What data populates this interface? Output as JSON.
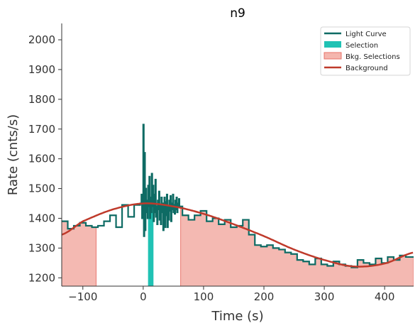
{
  "chart_data": {
    "type": "line",
    "title": "n9",
    "xlabel": "Time (s)",
    "ylabel": "Rate (cnts/s)",
    "xlim": [
      -135,
      448
    ],
    "ylim": [
      1172,
      2055
    ],
    "x_ticks": [
      -100,
      0,
      100,
      200,
      300,
      400
    ],
    "y_ticks": [
      1200,
      1300,
      1400,
      1500,
      1600,
      1700,
      1800,
      1900,
      2000
    ],
    "x_tick_labels": [
      "−100",
      "0",
      "100",
      "200",
      "300",
      "400"
    ],
    "y_tick_labels": [
      "1200",
      "1300",
      "1400",
      "1500",
      "1600",
      "1700",
      "1800",
      "1900",
      "2000"
    ],
    "legend": {
      "position": "top-right",
      "entries": [
        {
          "label": "Light Curve",
          "kind": "line",
          "color": "#0e6b64"
        },
        {
          "label": "Selection",
          "kind": "patch",
          "color": "#20c2b4"
        },
        {
          "label": "Bkg. Selections",
          "kind": "patch",
          "color": "#f4b6ae"
        },
        {
          "label": "Background",
          "kind": "line",
          "color": "#bf3a2b"
        }
      ]
    },
    "colors": {
      "light_curve": "#0e6b64",
      "selection": "#20c2b4",
      "bkg_selection_fill": "#f4b6ae",
      "bkg_selection_edge": "#e8736a",
      "background": "#bf3a2b"
    },
    "light_curve": {
      "coarse_before": [
        [
          -135,
          1390
        ],
        [
          -125,
          1365
        ],
        [
          -115,
          1375
        ],
        [
          -105,
          1385
        ],
        [
          -95,
          1375
        ],
        [
          -85,
          1370
        ],
        [
          -75,
          1375
        ],
        [
          -65,
          1390
        ],
        [
          -55,
          1410
        ],
        [
          -45,
          1370
        ],
        [
          -35,
          1445
        ],
        [
          -25,
          1405
        ],
        [
          -15,
          1445
        ],
        [
          -5,
          1450
        ]
      ],
      "fine": [
        [
          -5,
          1450
        ],
        [
          -3,
          1480
        ],
        [
          -2,
          1400
        ],
        [
          -1,
          1430
        ],
        [
          0,
          1715
        ],
        [
          1,
          1340
        ],
        [
          2,
          1620
        ],
        [
          3,
          1360
        ],
        [
          4,
          1500
        ],
        [
          5,
          1420
        ],
        [
          6,
          1460
        ],
        [
          7,
          1400
        ],
        [
          8,
          1510
        ],
        [
          9,
          1440
        ],
        [
          10,
          1540
        ],
        [
          11,
          1400
        ],
        [
          12,
          1470
        ],
        [
          13,
          1420
        ],
        [
          14,
          1550
        ],
        [
          15,
          1440
        ],
        [
          16,
          1510
        ],
        [
          17,
          1390
        ],
        [
          18,
          1480
        ],
        [
          19,
          1420
        ],
        [
          20,
          1530
        ],
        [
          21,
          1405
        ],
        [
          22,
          1440
        ],
        [
          23,
          1380
        ],
        [
          24,
          1460
        ],
        [
          25,
          1430
        ],
        [
          26,
          1490
        ],
        [
          27,
          1395
        ],
        [
          28,
          1445
        ],
        [
          29,
          1380
        ],
        [
          30,
          1470
        ],
        [
          31,
          1420
        ],
        [
          32,
          1450
        ],
        [
          33,
          1360
        ],
        [
          34,
          1420
        ],
        [
          35,
          1470
        ],
        [
          36,
          1370
        ],
        [
          37,
          1455
        ],
        [
          38,
          1410
        ],
        [
          39,
          1480
        ],
        [
          40,
          1370
        ],
        [
          41,
          1440
        ],
        [
          42,
          1395
        ],
        [
          43,
          1460
        ],
        [
          44,
          1425
        ],
        [
          45,
          1475
        ],
        [
          46,
          1390
        ],
        [
          47,
          1450
        ],
        [
          48,
          1430
        ],
        [
          49,
          1480
        ],
        [
          50,
          1420
        ],
        [
          51,
          1445
        ],
        [
          52,
          1415
        ],
        [
          53,
          1460
        ],
        [
          54,
          1430
        ],
        [
          55,
          1470
        ],
        [
          56,
          1420
        ],
        [
          57,
          1450
        ],
        [
          58,
          1440
        ],
        [
          59,
          1465
        ],
        [
          60,
          1440
        ]
      ],
      "coarse_after": [
        [
          60,
          1440
        ],
        [
          65,
          1410
        ],
        [
          75,
          1395
        ],
        [
          85,
          1410
        ],
        [
          95,
          1425
        ],
        [
          105,
          1390
        ],
        [
          115,
          1400
        ],
        [
          125,
          1380
        ],
        [
          135,
          1395
        ],
        [
          145,
          1370
        ],
        [
          155,
          1375
        ],
        [
          165,
          1395
        ],
        [
          175,
          1345
        ],
        [
          185,
          1310
        ],
        [
          195,
          1305
        ],
        [
          205,
          1310
        ],
        [
          215,
          1300
        ],
        [
          225,
          1295
        ],
        [
          235,
          1285
        ],
        [
          245,
          1280
        ],
        [
          255,
          1260
        ],
        [
          265,
          1255
        ],
        [
          275,
          1245
        ],
        [
          285,
          1265
        ],
        [
          295,
          1245
        ],
        [
          305,
          1240
        ],
        [
          315,
          1255
        ],
        [
          325,
          1245
        ],
        [
          335,
          1240
        ],
        [
          345,
          1235
        ],
        [
          355,
          1260
        ],
        [
          365,
          1250
        ],
        [
          375,
          1245
        ],
        [
          385,
          1265
        ],
        [
          395,
          1250
        ],
        [
          405,
          1270
        ],
        [
          415,
          1260
        ],
        [
          425,
          1275
        ],
        [
          435,
          1270
        ],
        [
          448,
          1270
        ]
      ]
    },
    "selection_interval": [
      8,
      17
    ],
    "bkg_selections": [
      [
        -135,
        -78
      ],
      [
        62,
        448
      ]
    ],
    "background_poly": {
      "x": [
        -135,
        -100,
        -50,
        0,
        50,
        100,
        150,
        200,
        250,
        300,
        350,
        400,
        448
      ],
      "y": [
        1345,
        1390,
        1430,
        1450,
        1440,
        1415,
        1380,
        1340,
        1295,
        1260,
        1238,
        1248,
        1285
      ]
    }
  }
}
